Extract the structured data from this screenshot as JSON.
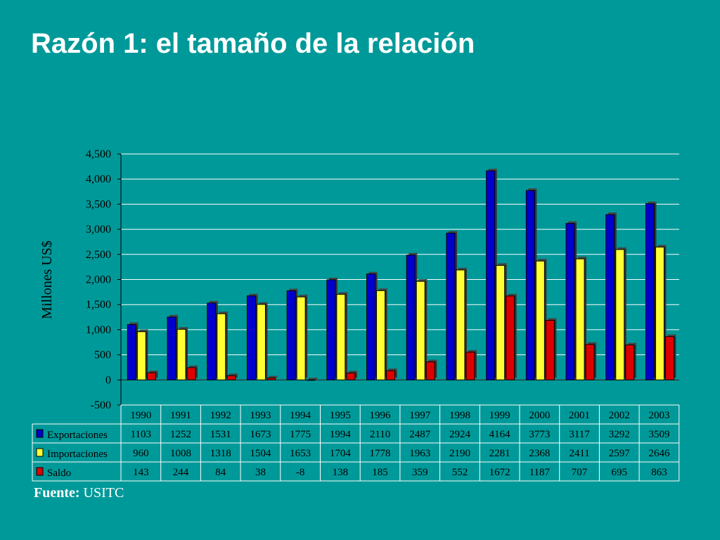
{
  "title": "Razón 1: el tamaño de la relación",
  "source": {
    "label": "Fuente:",
    "value": "USITC"
  },
  "colors": {
    "background": "#009999",
    "exportaciones": "#0000cc",
    "importaciones": "#ffff33",
    "saldo": "#dd0000",
    "text": "#000000",
    "grid": "#ffffff"
  },
  "chart_data": {
    "type": "bar",
    "title": "",
    "xlabel": "",
    "ylabel": "Millones US$",
    "ylim": [
      -500,
      4500
    ],
    "yticks": [
      -500,
      0,
      500,
      1000,
      1500,
      2000,
      2500,
      3000,
      3500,
      4000,
      4500
    ],
    "ytick_labels": [
      "-500",
      "0",
      "500",
      "1,000",
      "1,500",
      "2,000",
      "2,500",
      "3,000",
      "3,500",
      "4,000",
      "4,500"
    ],
    "grid": true,
    "legend": "data-table",
    "categories": [
      "1990",
      "1991",
      "1992",
      "1993",
      "1994",
      "1995",
      "1996",
      "1997",
      "1998",
      "1999",
      "2000",
      "2001",
      "2002",
      "2003"
    ],
    "series": [
      {
        "name": "Exportaciones",
        "color": "#0000cc",
        "values": [
          1103,
          1252,
          1531,
          1673,
          1775,
          1994,
          2110,
          2487,
          2924,
          4164,
          3773,
          3117,
          3292,
          3509
        ]
      },
      {
        "name": "Importaciones",
        "color": "#ffff33",
        "values": [
          960,
          1008,
          1318,
          1504,
          1653,
          1704,
          1778,
          1963,
          2190,
          2281,
          2368,
          2411,
          2597,
          2646
        ]
      },
      {
        "name": "Saldo",
        "color": "#dd0000",
        "values": [
          143,
          244,
          84,
          38,
          -8,
          138,
          185,
          359,
          552,
          1672,
          1187,
          707,
          695,
          863
        ]
      }
    ]
  }
}
